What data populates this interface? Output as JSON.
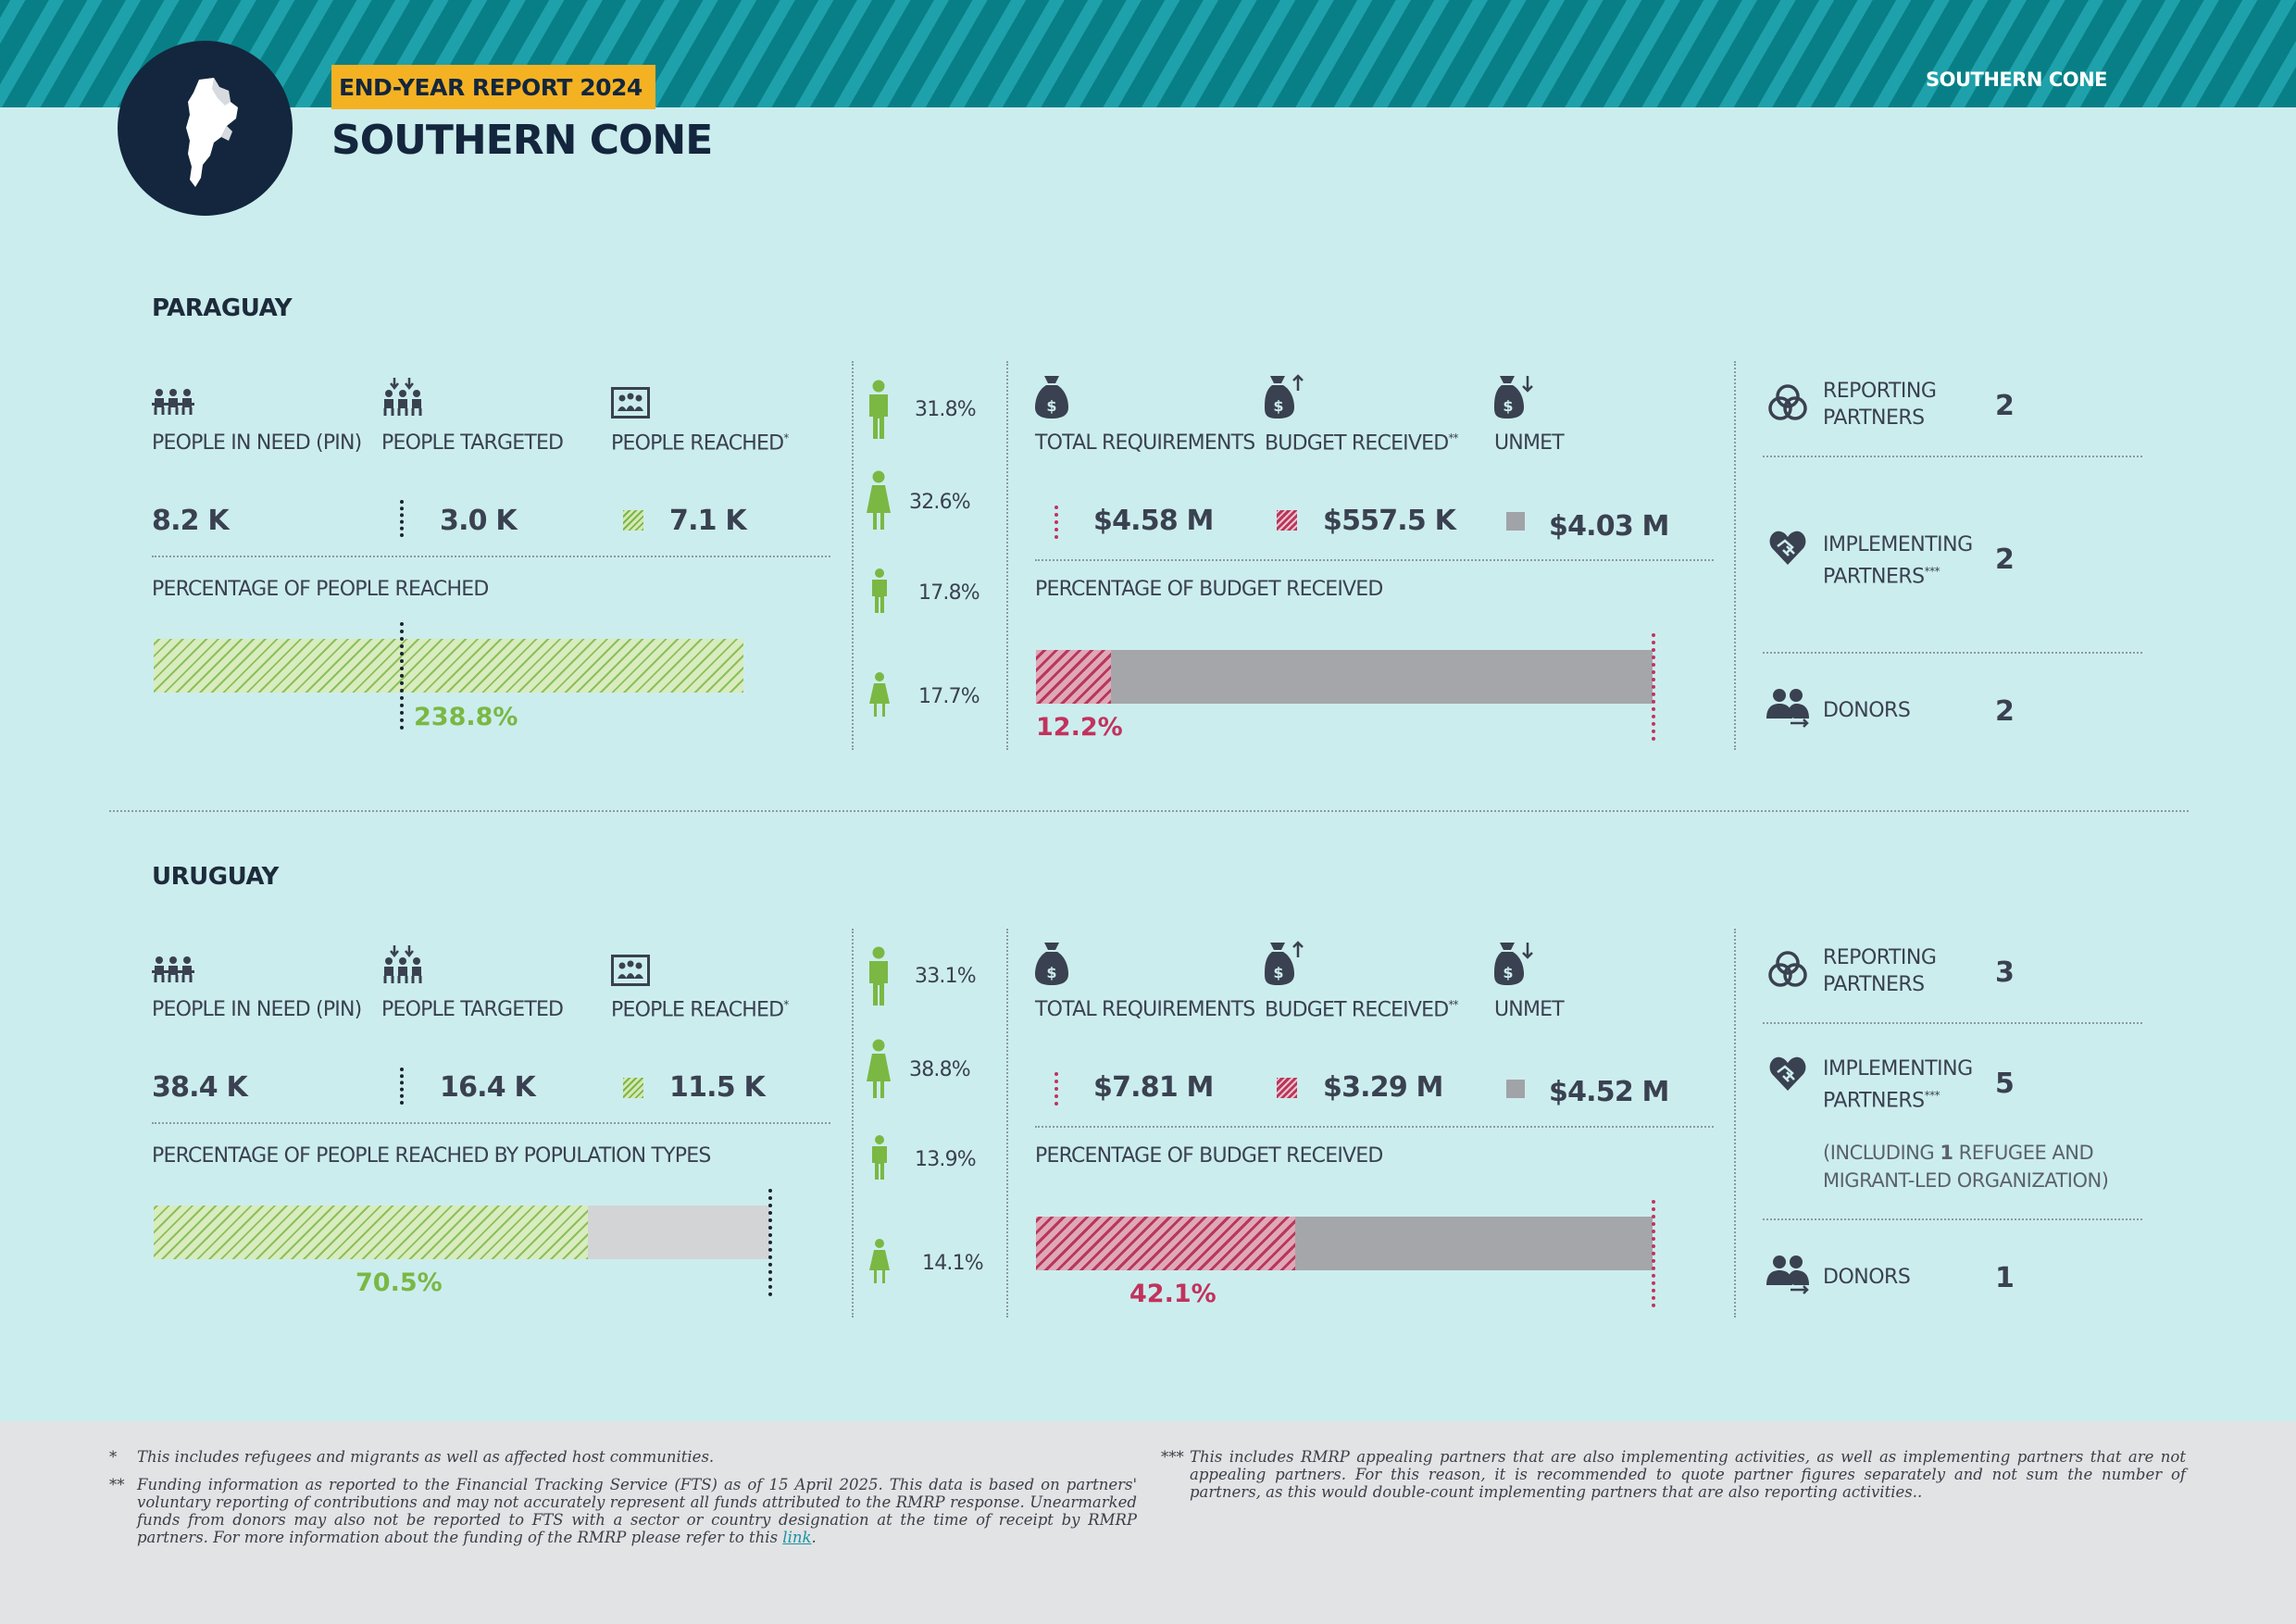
{
  "header": {
    "region_tag": "SOUTHERN CONE",
    "report_badge": "END-YEAR REPORT 2024",
    "title": "SOUTHERN CONE"
  },
  "colors": {
    "header_teal": "#087f86",
    "badge_yellow": "#f4b223",
    "navy": "#13263d",
    "reached_green": "#7ab843",
    "budget_red": "#c2325d",
    "unmet_grey": "#a0a3a8",
    "background": "#ccedee"
  },
  "labels": {
    "pin": "PEOPLE IN NEED (PIN)",
    "targeted": "PEOPLE TARGETED",
    "reached": "PEOPLE REACHED",
    "reached_mark": "*",
    "total_req": "TOTAL REQUIREMENTS",
    "budget_received": "BUDGET RECEIVED",
    "budget_mark": "**",
    "unmet": "UNMET",
    "pct_budget": "PERCENTAGE OF BUDGET RECEIVED",
    "reporting_partners": "REPORTING PARTNERS",
    "implementing_partners": "IMPLEMENTING PARTNERS",
    "implementing_mark": "***",
    "donors": "DONORS"
  },
  "paraguay": {
    "name": "PARAGUAY",
    "pin": "8.2 K",
    "targeted": "3.0 K",
    "reached": "7.1 K",
    "pct_reached_label": "PERCENTAGE OF PEOPLE REACHED",
    "pct_reached": "238.8%",
    "pct_reached_value": 238.8,
    "demographics": [
      "31.8%",
      "32.6%",
      "17.8%",
      "17.7%"
    ],
    "total_req": "$4.58 M",
    "budget_received": "$557.5 K",
    "unmet": "$4.03 M",
    "pct_budget": "12.2%",
    "pct_budget_value": 12.2,
    "reporting_partners": "2",
    "implementing_partners": "2",
    "donors": "2"
  },
  "uruguay": {
    "name": "URUGUAY",
    "pin": "38.4 K",
    "targeted": "16.4 K",
    "reached": "11.5 K",
    "pct_reached_label": "PERCENTAGE OF PEOPLE REACHED BY POPULATION TYPES",
    "pct_reached": "70.5%",
    "pct_reached_value": 70.5,
    "demographics": [
      "33.1%",
      "38.8%",
      "13.9%",
      "14.1%"
    ],
    "total_req": "$7.81 M",
    "budget_received": "$3.29 M",
    "unmet": "$4.52 M",
    "pct_budget": "42.1%",
    "pct_budget_value": 42.1,
    "reporting_partners": "3",
    "implementing_partners": "5",
    "implementing_note_pre": "(INCLUDING ",
    "implementing_note_num": "1",
    "implementing_note_post": " REFUGEE AND MIGRANT-LED ORGANIZATION)",
    "donors": "1"
  },
  "footnotes": {
    "mark1": "*",
    "note1": "This includes refugees and migrants as well as affected host communities.",
    "mark2": "**",
    "note2": "Funding information as reported to the Financial Tracking Service (FTS) as of 15 April 2025. This data is based on partners' voluntary reporting of contributions and may not accurately represent all funds attributed to the RMRP response. Unearmarked funds from donors may also not be reported to FTS with a sector or country designation at the time of receipt by RMRP partners. For more information about the funding of the RMRP please refer to this",
    "link_text": "link",
    "mark3": "***",
    "note3": "This includes RMRP appealing partners that are also implementing activities, as well as implementing partners that are not appealing partners. For this reason, it is recommended to quote partner figures separately and not sum the number of partners, as this would double-count implementing partners that are also reporting activities.."
  }
}
